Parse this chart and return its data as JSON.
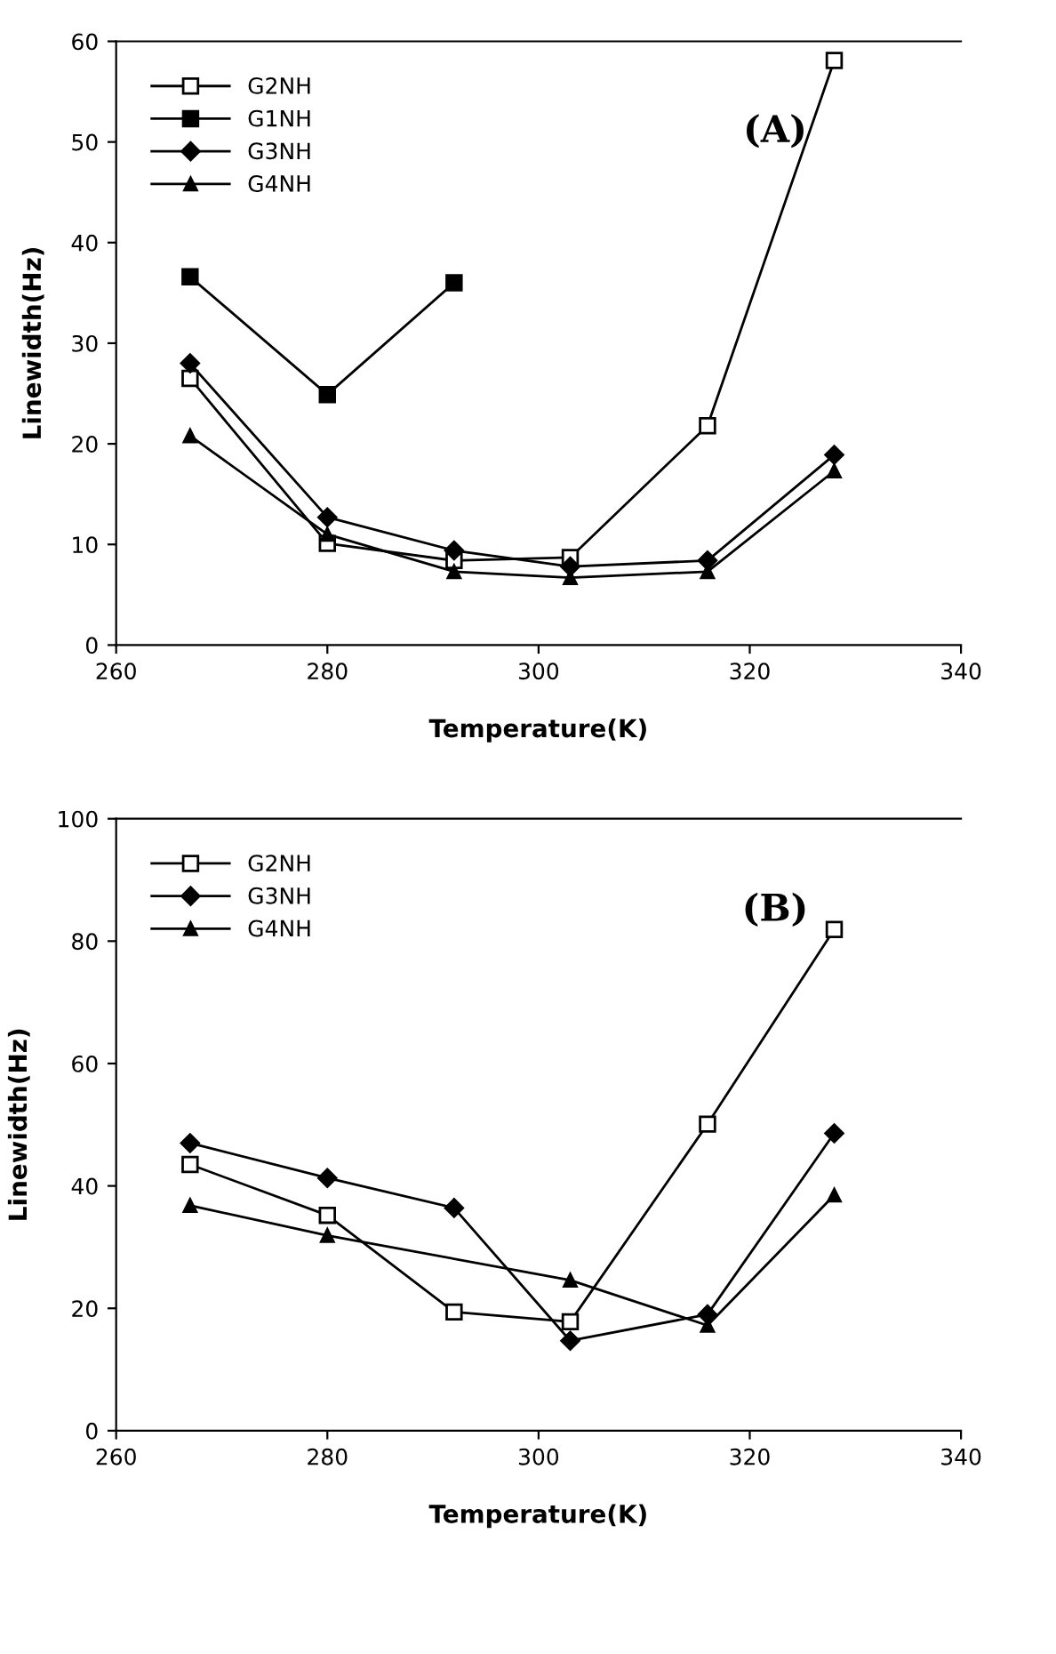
{
  "chart_data": [
    {
      "type": "line",
      "xlabel": "Temperature(K)",
      "ylabel": "Linewidth(Hz)",
      "annotations": [
        "(A)"
      ],
      "xlim": [
        260,
        340
      ],
      "xticks": [
        260,
        280,
        300,
        320,
        340
      ],
      "ylim": [
        0,
        60
      ],
      "yticks": [
        0,
        10,
        20,
        30,
        40,
        50,
        60
      ],
      "grid": false,
      "legend": "top left",
      "series": [
        {
          "name": "G2NH",
          "color": "#000000",
          "marker": "square_open",
          "x": [
            267,
            280,
            292,
            303,
            316,
            328
          ],
          "values": [
            26.5,
            10.1,
            8.4,
            8.7,
            21.8,
            58.1
          ]
        },
        {
          "name": "G1NH",
          "color": "#000000",
          "marker": "square",
          "x": [
            267,
            280,
            292
          ],
          "values": [
            36.6,
            24.9,
            36.0
          ]
        },
        {
          "name": "G3NH",
          "color": "#000000",
          "marker": "diamond",
          "x": [
            267,
            280,
            292,
            303,
            316,
            328
          ],
          "values": [
            28.0,
            12.7,
            9.4,
            7.8,
            8.4,
            18.9
          ]
        },
        {
          "name": "G4NH",
          "color": "#000000",
          "marker": "triangle",
          "x": [
            267,
            280,
            292,
            303,
            316,
            328
          ],
          "values": [
            20.8,
            11.0,
            7.3,
            6.7,
            7.3,
            17.3
          ]
        }
      ]
    },
    {
      "type": "line",
      "xlabel": "Temperature(K)",
      "ylabel": "Linewidth(Hz)",
      "annotations": [
        "(B)"
      ],
      "xlim": [
        260,
        340
      ],
      "xticks": [
        260,
        280,
        300,
        320,
        340
      ],
      "ylim": [
        0,
        100
      ],
      "yticks": [
        0,
        20,
        40,
        60,
        80,
        100
      ],
      "grid": false,
      "legend": "top left",
      "series": [
        {
          "name": "G2NH",
          "color": "#000000",
          "marker": "square_open",
          "x": [
            267,
            280,
            292,
            303,
            316,
            328
          ],
          "values": [
            43.5,
            35.2,
            19.4,
            17.8,
            50.1,
            81.9
          ]
        },
        {
          "name": "G3NH",
          "color": "#000000",
          "marker": "diamond",
          "x": [
            267,
            280,
            292,
            303,
            316,
            328
          ],
          "values": [
            47.0,
            41.3,
            36.4,
            14.7,
            19.0,
            48.6
          ]
        },
        {
          "name": "G4NH",
          "color": "#000000",
          "marker": "triangle",
          "x": [
            267,
            280,
            303,
            316,
            328
          ],
          "values": [
            36.8,
            31.9,
            24.6,
            17.2,
            38.5
          ]
        }
      ]
    }
  ]
}
